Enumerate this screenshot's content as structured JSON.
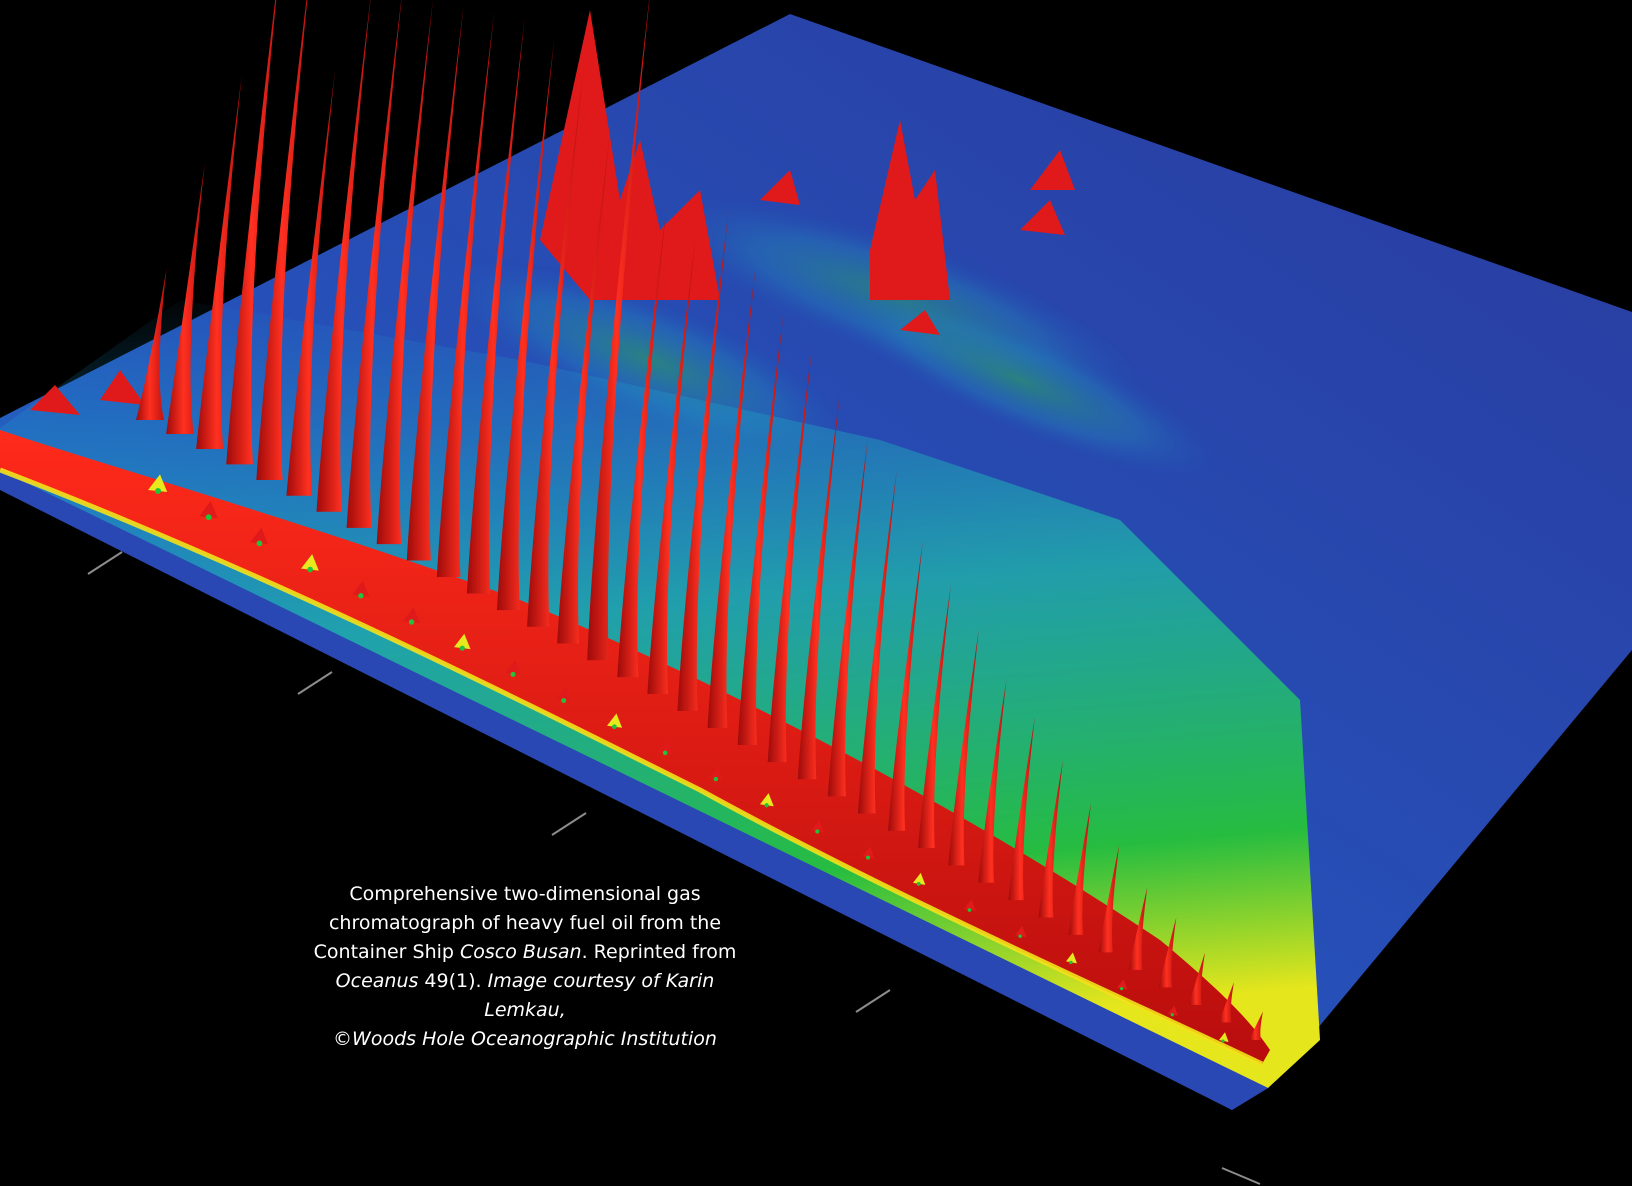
{
  "chart_data": {
    "type": "surface",
    "title": "",
    "xlabel": "",
    "ylabel": "",
    "zlabel": "",
    "grid": false,
    "legend": "none",
    "colors": {
      "background": "#000000",
      "baseline": "#2a3a9e",
      "low": "#1f6fd0",
      "mid_low": "#18b4b0",
      "mid": "#22c23a",
      "mid_high": "#e8e81e",
      "high": "#e01a1a"
    },
    "tick_marks_front_axis": 5,
    "tick_marks_right_axis": 2,
    "n_alkane_series": {
      "relative_height": [
        0.2,
        0.36,
        0.5,
        0.7,
        0.72,
        0.58,
        0.72,
        0.75,
        0.76,
        0.78,
        0.8,
        0.82,
        0.82,
        0.8,
        0.74,
        1.0,
        0.7,
        0.68,
        0.75,
        0.7,
        0.66,
        0.64,
        0.6,
        0.56,
        0.54,
        0.46,
        0.42,
        0.38,
        0.33,
        0.3,
        0.26,
        0.22,
        0.18,
        0.14,
        0.12,
        0.09,
        0.07,
        0.05
      ]
    }
  },
  "caption": {
    "line1": "Comprehensive two-dimensional gas",
    "line2": "chromatograph of heavy fuel oil from the",
    "line3_pre": "Container Ship ",
    "line3_ship": "Cosco Busan",
    "line3_post": ". Reprinted from",
    "line4_journal": "Oceanus",
    "line4_issue": " 49(1). ",
    "line4_credit": "Image courtesy of Karin Lemkau,",
    "line5": "©Woods Hole Oceanographic Institution"
  }
}
